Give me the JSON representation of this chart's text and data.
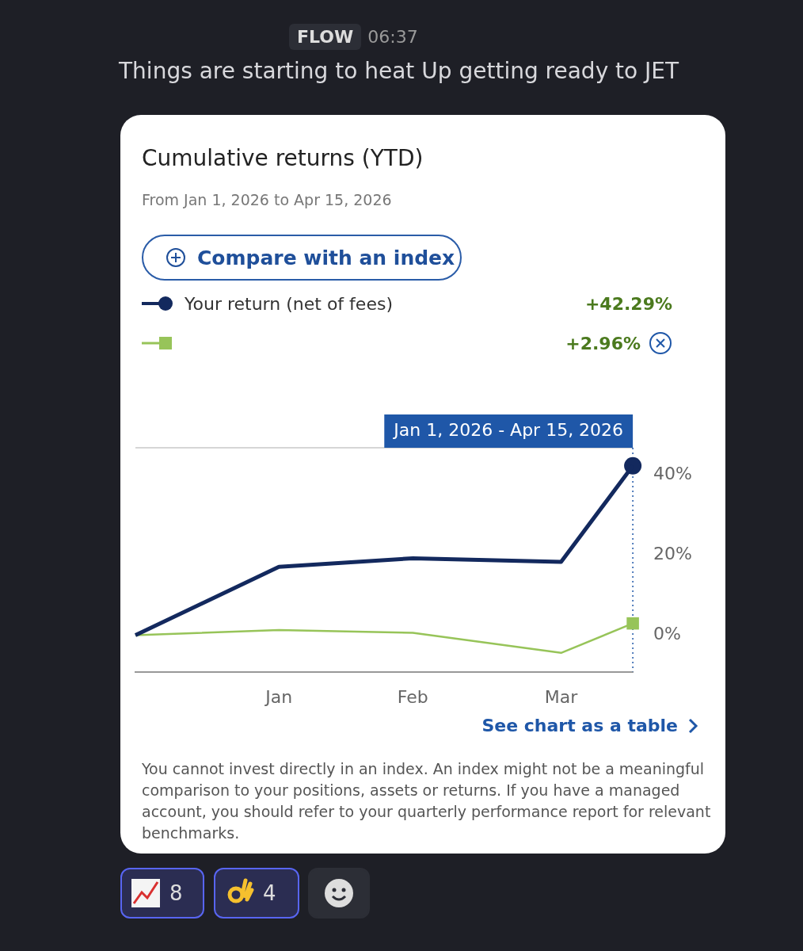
{
  "chart_data": {
    "type": "line",
    "title": "Cumulative returns (YTD)",
    "subtitle": "From Jan 1, 2026 to Apr 15, 2026",
    "x": [
      "2026-01-01",
      "2026-01-31",
      "2026-02-28",
      "2026-03-31",
      "2026-04-15"
    ],
    "series": [
      {
        "name": "Your return (net of fees)",
        "color": "#13295e",
        "values": [
          0,
          17.1,
          19.2,
          18.3,
          42.29
        ]
      },
      {
        "color": "#97c459",
        "values": [
          0,
          1.3,
          0.6,
          -4.4,
          2.96
        ]
      },
      {
        "type": "scatter",
        "color": "#13295e",
        "x": [
          "2026-04-15"
        ],
        "values": [
          42.29
        ],
        "marker": "circle"
      },
      {
        "type": "scatter",
        "color": "#97c459",
        "x": [
          "2026-04-15"
        ],
        "values": [
          2.96
        ],
        "marker": "square"
      }
    ],
    "xlim": [
      "2026-01-01",
      "2026-04-15"
    ],
    "xticks": [
      {
        "value": "2026-01-31",
        "label": "Jan"
      },
      {
        "value": "2026-02-28",
        "label": "Feb"
      },
      {
        "value": "2026-03-31",
        "label": "Mar"
      }
    ],
    "ylim": [
      -9.1,
      46.8
    ],
    "yticks": [
      {
        "value": 0,
        "label": "0%"
      },
      {
        "value": 20,
        "label": "20%"
      },
      {
        "value": 40,
        "label": "40%"
      }
    ],
    "ref_lines": [
      {
        "axis": "x",
        "value": "2026-04-15",
        "label": "Jan 1, 2026 - Apr 15, 2026",
        "line_style": "dotted",
        "color": "#1f57a8"
      }
    ],
    "grid": false,
    "legend": "top",
    "annotations": [
      "Compare with an index",
      "+42.29%",
      "+2.96%",
      "See chart as a table",
      "You cannot invest directly in an index. An index might not be a meaningful comparison to your positions, assets or returns. If you have a managed account, you should refer to your quarterly performance report for relevant benchmarks.",
      "Things are starting to heat Up getting ready to JET",
      "FLOW",
      "06:37",
      "8",
      "4"
    ]
  }
}
